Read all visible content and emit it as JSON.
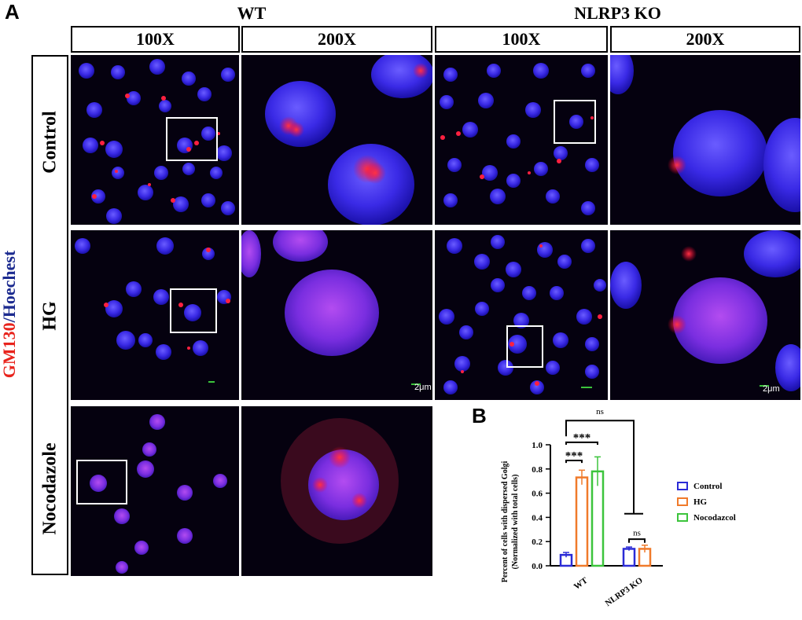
{
  "panel_a": {
    "letter": "A",
    "stain_label": {
      "red_part": "GM130",
      "separator": "/",
      "blue_part": "Hoechest"
    },
    "groups": [
      "WT",
      "NLRP3 KO"
    ],
    "magnifications": [
      "100X",
      "200X",
      "100X",
      "200X"
    ],
    "rows": [
      "Control",
      "HG",
      "Nocodazole"
    ],
    "scale_bar_label": "2μm"
  },
  "panel_b": {
    "letter": "B",
    "ylabel_line1": "Percent of cells with dispersed Golgi",
    "ylabel_line2": "(Normalized with total cells)",
    "yticks": [
      "0.0",
      "0.2",
      "0.4",
      "0.6",
      "0.8",
      "1.0"
    ],
    "sig_labels": {
      "ns_top": "ns",
      "wt_hg": "***",
      "wt_noc": "***",
      "ko_ns": "ns"
    }
  },
  "chart_data": {
    "type": "bar",
    "categories": [
      "WT",
      "NLRP3 KO"
    ],
    "series": [
      {
        "name": "Control",
        "values": [
          0.09,
          0.14
        ],
        "errors": [
          0.02,
          0.015
        ],
        "color": "#2b2bd6"
      },
      {
        "name": "HG",
        "values": [
          0.73,
          0.14
        ],
        "errors": [
          0.06,
          0.03
        ],
        "color": "#f07a2a"
      },
      {
        "name": "Nocodazcol",
        "values": [
          0.78,
          null
        ],
        "errors": [
          0.12,
          null
        ],
        "color": "#3cc43c"
      }
    ],
    "ylim": [
      0,
      1.0
    ],
    "legend_position": "right",
    "grid": false
  }
}
